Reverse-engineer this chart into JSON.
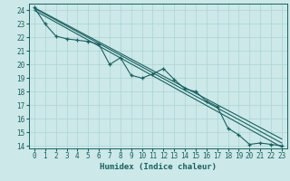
{
  "xlabel": "Humidex (Indice chaleur)",
  "xlim": [
    -0.5,
    23.5
  ],
  "ylim": [
    13.8,
    24.5
  ],
  "yticks": [
    14,
    15,
    16,
    17,
    18,
    19,
    20,
    21,
    22,
    23,
    24
  ],
  "xticks": [
    0,
    1,
    2,
    3,
    4,
    5,
    6,
    7,
    8,
    9,
    10,
    11,
    12,
    13,
    14,
    15,
    16,
    17,
    18,
    19,
    20,
    21,
    22,
    23
  ],
  "bg_color": "#cce8e8",
  "grid_color": "#aad4d4",
  "line_color": "#1a6060",
  "main_data_x": [
    0,
    1,
    2,
    3,
    4,
    5,
    6,
    7,
    8,
    9,
    10,
    11,
    12,
    13,
    14,
    15,
    16,
    17,
    18,
    19,
    20,
    21,
    22,
    23
  ],
  "main_data_y": [
    24.2,
    23.0,
    22.1,
    21.9,
    21.8,
    21.7,
    21.5,
    20.0,
    20.5,
    19.2,
    19.0,
    19.3,
    19.7,
    18.9,
    18.2,
    18.0,
    17.3,
    16.9,
    15.3,
    14.8,
    14.1,
    14.2,
    14.1,
    14.0
  ],
  "upper_line_x": [
    0,
    23
  ],
  "upper_line_y": [
    24.2,
    14.5
  ],
  "lower_line_x": [
    0,
    23
  ],
  "lower_line_y": [
    24.0,
    13.9
  ],
  "trend_x": [
    0,
    23
  ],
  "trend_y": [
    24.15,
    14.2
  ]
}
